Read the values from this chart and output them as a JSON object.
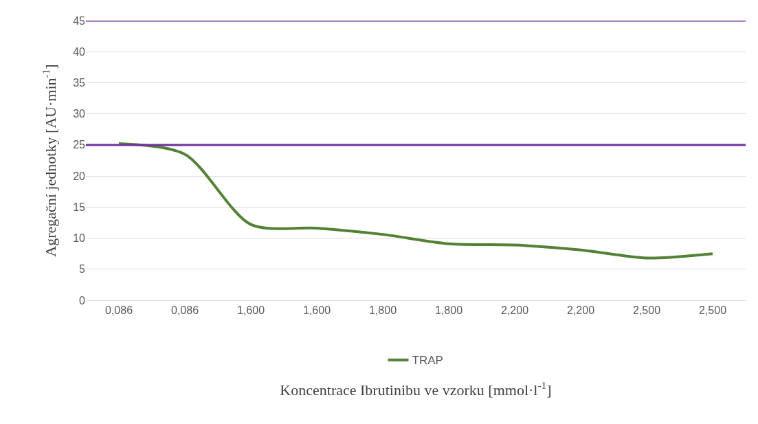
{
  "chart_data": {
    "type": "line",
    "xlabel": "Koncentrace Ibrutinibu ve vzorku [mmol·l$^{-1}$]",
    "ylabel": "Agregační jednotky [AU·min$^{-1}$]",
    "categories": [
      "0,086",
      "0,086",
      "1,600",
      "1,600",
      "1,800",
      "1,800",
      "2,200",
      "2,200",
      "2,500",
      "2,500"
    ],
    "series": [
      {
        "name": "TRAP",
        "color": "#538135",
        "values": [
          25.2,
          23.5,
          12.2,
          11.6,
          10.6,
          9.1,
          8.9,
          8.1,
          6.8,
          7.5
        ]
      }
    ],
    "ylim": [
      0,
      45
    ],
    "yticks": [
      0,
      5,
      10,
      15,
      20,
      25,
      30,
      35,
      40,
      45
    ],
    "grid": "y",
    "legend": "bottom",
    "marker": "none",
    "line_style": "solid",
    "ref_lines": [
      {
        "axis": "y",
        "value": 25,
        "color": "#7030a0"
      },
      {
        "axis": "y",
        "value": 45,
        "color": "#7030a0"
      }
    ]
  }
}
